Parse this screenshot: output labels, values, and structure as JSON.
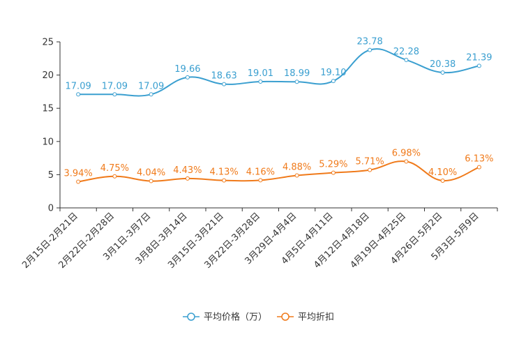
{
  "chart_data": {
    "type": "line",
    "categories": [
      "2月15日-2月21日",
      "2月22日-2月28日",
      "3月1日-3月7日",
      "3月8日-3月14日",
      "3月15日-3月21日",
      "3月22日-3月28日",
      "3月29日-4月4日",
      "4月5日-4月11日",
      "4月12日-4月18日",
      "4月19日-4月25日",
      "4月26日-5月2日",
      "5月3日-5月9日"
    ],
    "ylim": [
      0,
      25
    ],
    "yticks": [
      0,
      5,
      10,
      15,
      20,
      25
    ],
    "grid": false,
    "legend_position": "bottom-center",
    "series": [
      {
        "name": "平均价格（万）",
        "color": "#3a9fd0",
        "values": [
          17.09,
          17.09,
          17.09,
          19.66,
          18.63,
          19.01,
          18.99,
          19.1,
          23.78,
          22.28,
          20.38,
          21.39
        ],
        "labels": [
          "17.09",
          "17.09",
          "17.09",
          "19.66",
          "18.63",
          "19.01",
          "18.99",
          "19.10",
          "23.78",
          "22.28",
          "20.38",
          "21.39"
        ]
      },
      {
        "name": "平均折扣",
        "color": "#f07a1a",
        "values": [
          3.94,
          4.75,
          4.04,
          4.43,
          4.13,
          4.16,
          4.88,
          5.29,
          5.71,
          6.98,
          4.1,
          6.13
        ],
        "labels": [
          "3.94%",
          "4.75%",
          "4.04%",
          "4.43%",
          "4.13%",
          "4.16%",
          "4.88%",
          "5.29%",
          "5.71%",
          "6.98%",
          "4.10%",
          "6.13%"
        ]
      }
    ]
  }
}
